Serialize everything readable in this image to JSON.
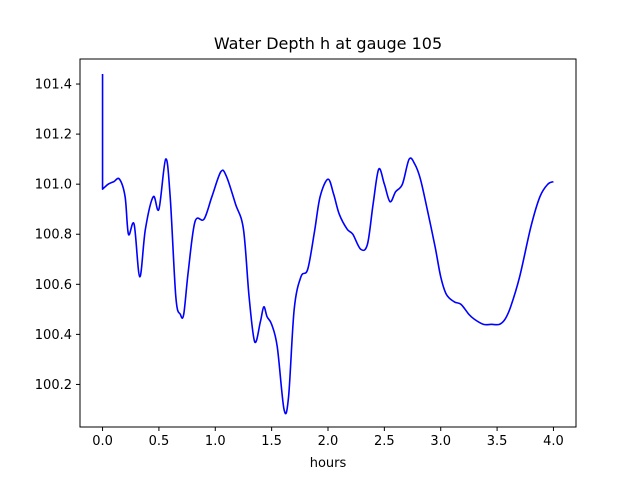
{
  "chart_data": {
    "type": "line",
    "title": "Water Depth h at gauge 105",
    "xlabel": "hours",
    "ylabel": "",
    "xlim": [
      -0.2,
      4.2
    ],
    "ylim": [
      100.03,
      101.5
    ],
    "xticks": [
      0.0,
      0.5,
      1.0,
      1.5,
      2.0,
      2.5,
      3.0,
      3.5,
      4.0
    ],
    "xtick_labels": [
      "0.0",
      "0.5",
      "1.0",
      "1.5",
      "2.0",
      "2.5",
      "3.0",
      "3.5",
      "4.0"
    ],
    "yticks": [
      100.2,
      100.4,
      100.6,
      100.8,
      101.0,
      101.2,
      101.4
    ],
    "ytick_labels": [
      "100.2",
      "100.4",
      "100.6",
      "100.8",
      "101.0",
      "101.2",
      "101.4"
    ],
    "grid": false,
    "series": [
      {
        "color": "#0000ff",
        "x": [
          0.0,
          0.0,
          0.0,
          0.05,
          0.1,
          0.15,
          0.2,
          0.23,
          0.28,
          0.33,
          0.38,
          0.45,
          0.5,
          0.56,
          0.6,
          0.65,
          0.69,
          0.72,
          0.76,
          0.82,
          0.9,
          0.97,
          1.05,
          1.1,
          1.18,
          1.25,
          1.3,
          1.35,
          1.4,
          1.43,
          1.46,
          1.5,
          1.55,
          1.61,
          1.65,
          1.7,
          1.76,
          1.82,
          1.88,
          1.93,
          2.0,
          2.05,
          2.1,
          2.17,
          2.22,
          2.29,
          2.35,
          2.4,
          2.45,
          2.5,
          2.55,
          2.6,
          2.66,
          2.72,
          2.77,
          2.82,
          2.88,
          2.95,
          3.0,
          3.05,
          3.12,
          3.18,
          3.25,
          3.3,
          3.38,
          3.45,
          3.52,
          3.57,
          3.62,
          3.7,
          3.8,
          3.88,
          3.95,
          4.0
        ],
        "y": [
          101.44,
          101.44,
          100.98,
          101.0,
          101.01,
          101.02,
          100.95,
          100.8,
          100.84,
          100.63,
          100.82,
          100.95,
          100.9,
          101.1,
          100.95,
          100.55,
          100.48,
          100.48,
          100.65,
          100.85,
          100.86,
          100.95,
          101.05,
          101.03,
          100.92,
          100.82,
          100.55,
          100.37,
          100.45,
          100.51,
          100.47,
          100.44,
          100.35,
          100.1,
          100.15,
          100.5,
          100.63,
          100.66,
          100.81,
          100.95,
          101.02,
          100.96,
          100.88,
          100.82,
          100.8,
          100.74,
          100.76,
          100.92,
          101.06,
          101.0,
          100.93,
          100.97,
          101.0,
          101.1,
          101.08,
          101.02,
          100.9,
          100.75,
          100.63,
          100.56,
          100.53,
          100.52,
          100.48,
          100.46,
          100.44,
          100.44,
          100.44,
          100.46,
          100.51,
          100.63,
          100.83,
          100.95,
          101.0,
          101.01
        ]
      }
    ]
  }
}
